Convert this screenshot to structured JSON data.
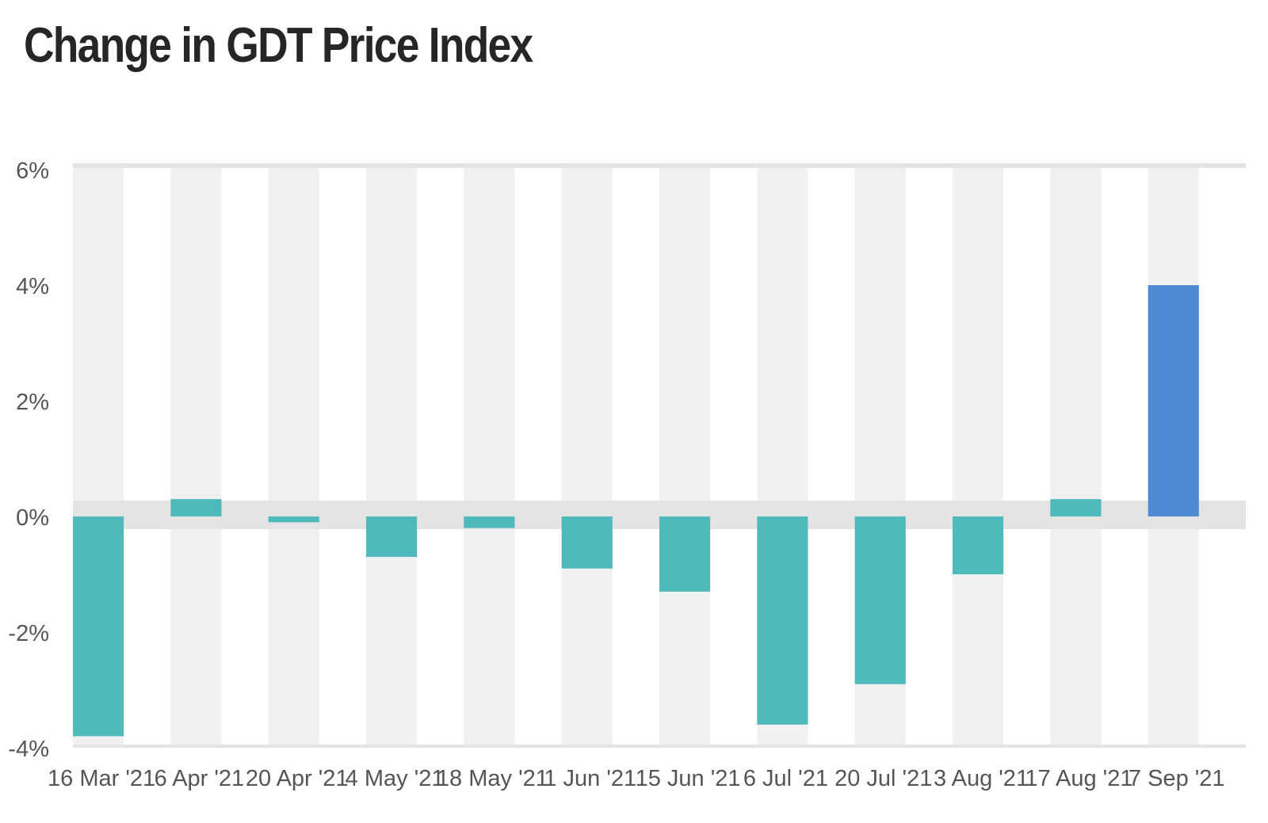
{
  "title": "Change in GDT Price Index",
  "chart_data": {
    "type": "bar",
    "title": "Change in GDT Price Index",
    "xlabel": "",
    "ylabel": "",
    "ylim": [
      -4,
      6
    ],
    "y_ticks": [
      "6%",
      "4%",
      "2%",
      "0%",
      "-2%",
      "-4%"
    ],
    "y_tick_values": [
      6,
      4,
      2,
      0,
      -2,
      -4
    ],
    "categories": [
      "16 Mar '21",
      "6 Apr '21",
      "20 Apr '21",
      "4 May '21",
      "18 May '21",
      "1 Jun '21",
      "15 Jun '21",
      "6 Jul '21",
      "20 Jul '21",
      "3 Aug '21",
      "17 Aug '21",
      "7 Sep '21"
    ],
    "values": [
      -3.8,
      0.3,
      -0.1,
      -0.7,
      -0.2,
      -0.9,
      -1.3,
      -3.6,
      -2.9,
      -1.0,
      0.3,
      4.0
    ],
    "unit": "%",
    "grid": false,
    "background_bands": true,
    "colors": {
      "bar": "#4ebabb",
      "highlight_bar": "#5089d4",
      "band": "#f1f1f1",
      "zero_band": "#e4e4e4"
    },
    "highlight_index": 11
  }
}
